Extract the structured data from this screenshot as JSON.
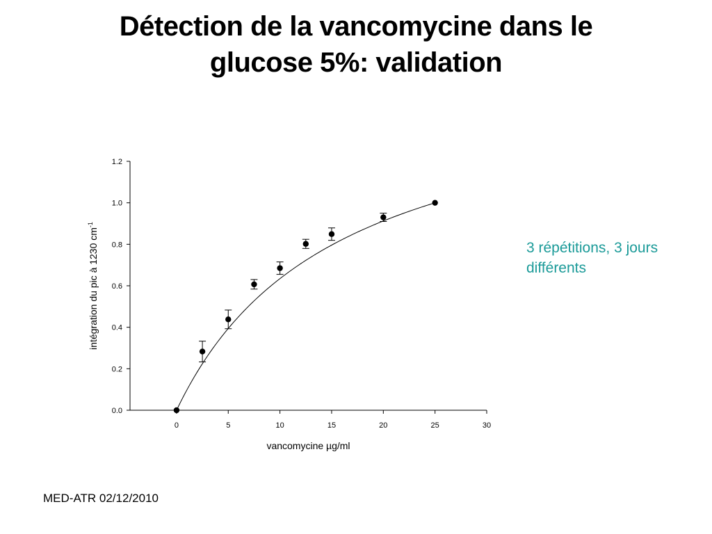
{
  "slide": {
    "title_line1": "Détection de la vancomycine dans le",
    "title_line2": "glucose 5%: validation",
    "note_line1": "3 répétitions, 3 jours",
    "note_line2": "différents",
    "footer": "MED-ATR 02/12/2010"
  },
  "chart_data": {
    "type": "scatter",
    "title": "",
    "xlabel": "vancomycine µg/ml",
    "ylabel": "intégration du pic à 1230 cm",
    "ylabel_superscript": "-1",
    "xlim": [
      -4.5,
      30
    ],
    "ylim": [
      0.0,
      1.2
    ],
    "x_ticks": [
      "0",
      "5",
      "10",
      "15",
      "20",
      "25",
      "30"
    ],
    "x_tick_values": [
      0,
      5,
      10,
      15,
      20,
      25,
      30
    ],
    "y_ticks": [
      "0.0",
      "0.2",
      "0.4",
      "0.6",
      "0.8",
      "1.0",
      "1.2"
    ],
    "y_tick_values": [
      0.0,
      0.2,
      0.4,
      0.6,
      0.8,
      1.0,
      1.2
    ],
    "grid": false,
    "points": [
      {
        "x": 0,
        "y": 0.0,
        "err": 0.0
      },
      {
        "x": 2.5,
        "y": 0.283,
        "err": 0.05
      },
      {
        "x": 5,
        "y": 0.438,
        "err": 0.045
      },
      {
        "x": 7.5,
        "y": 0.607,
        "err": 0.023
      },
      {
        "x": 10,
        "y": 0.685,
        "err": 0.03
      },
      {
        "x": 12.5,
        "y": 0.802,
        "err": 0.022
      },
      {
        "x": 15,
        "y": 0.849,
        "err": 0.03
      },
      {
        "x": 20,
        "y": 0.93,
        "err": 0.02
      },
      {
        "x": 25,
        "y": 1.0,
        "err": 0.0
      }
    ],
    "fit_curve": {
      "type": "hyperbolic",
      "a": 1.624,
      "b": 15.6
    }
  }
}
